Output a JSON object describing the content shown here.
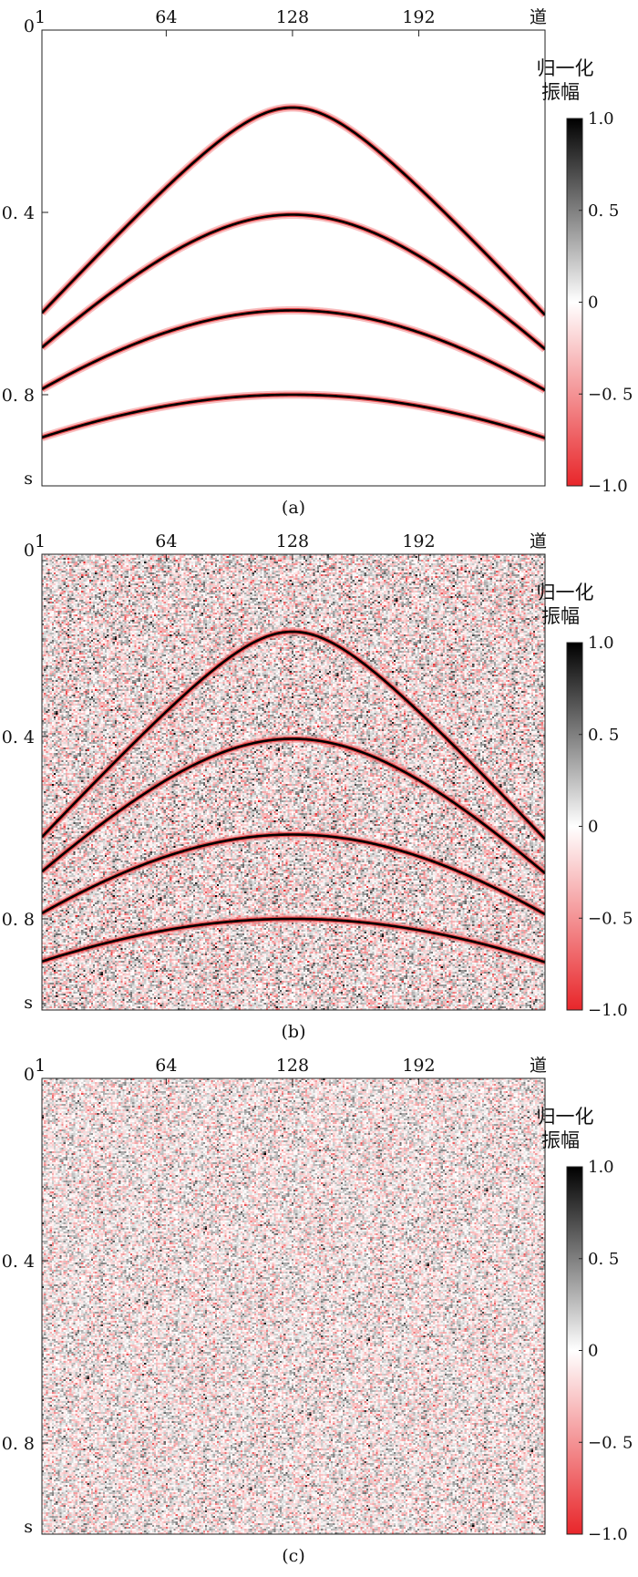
{
  "chart_data": [
    {
      "type": "heatmap",
      "caption": "(a)",
      "x_tick_labels": [
        "1",
        "64",
        "128",
        "192",
        "道"
      ],
      "x_ticks": [
        1,
        64,
        128,
        192,
        256
      ],
      "xlim": [
        1,
        256
      ],
      "y_tick_labels": [
        "0",
        "0. 4",
        "0. 8",
        "s"
      ],
      "y_ticks": [
        0,
        0.4,
        0.8
      ],
      "ylim": [
        0,
        1.0
      ],
      "colorbar": {
        "title_line1": "归一化",
        "title_line2": "振幅",
        "tick_labels": [
          "1.0",
          "0. 5",
          "0",
          "−0. 5",
          "−1.0"
        ],
        "range": [
          -1.0,
          1.0
        ],
        "colors": {
          "max": "#000000",
          "mid": "#ffffff",
          "min": "#e8262a"
        }
      },
      "events": [
        {
          "apex_trace": 128,
          "apex_time": 0.17,
          "edge_time": 0.625
        },
        {
          "apex_trace": 128,
          "apex_time": 0.405,
          "edge_time": 0.7
        },
        {
          "apex_trace": 128,
          "apex_time": 0.615,
          "edge_time": 0.79
        },
        {
          "apex_trace": 128,
          "apex_time": 0.8,
          "edge_time": 0.895
        }
      ],
      "noise_level": 0.0
    },
    {
      "type": "heatmap",
      "caption": "(b)",
      "x_tick_labels": [
        "1",
        "64",
        "128",
        "192",
        "道"
      ],
      "x_ticks": [
        1,
        64,
        128,
        192,
        256
      ],
      "xlim": [
        1,
        256
      ],
      "y_tick_labels": [
        "0",
        "0. 4",
        "0. 8",
        "s"
      ],
      "y_ticks": [
        0,
        0.4,
        0.8
      ],
      "ylim": [
        0,
        1.0
      ],
      "colorbar": {
        "title_line1": "归一化",
        "title_line2": "振幅",
        "tick_labels": [
          "1.0",
          "0. 5",
          "0",
          "−0. 5",
          "−1.0"
        ],
        "range": [
          -1.0,
          1.0
        ],
        "colors": {
          "max": "#000000",
          "mid": "#ffffff",
          "min": "#e8262a"
        }
      },
      "events": [
        {
          "apex_trace": 128,
          "apex_time": 0.17,
          "edge_time": 0.625
        },
        {
          "apex_trace": 128,
          "apex_time": 0.405,
          "edge_time": 0.7
        },
        {
          "apex_trace": 128,
          "apex_time": 0.615,
          "edge_time": 0.79
        },
        {
          "apex_trace": 128,
          "apex_time": 0.8,
          "edge_time": 0.895
        }
      ],
      "noise_level": 0.55
    },
    {
      "type": "heatmap",
      "caption": "(c)",
      "x_tick_labels": [
        "1",
        "64",
        "128",
        "192",
        "道"
      ],
      "x_ticks": [
        1,
        64,
        128,
        192,
        256
      ],
      "xlim": [
        1,
        256
      ],
      "y_tick_labels": [
        "0",
        "0. 4",
        "0. 8",
        "s"
      ],
      "y_ticks": [
        0,
        0.4,
        0.8
      ],
      "ylim": [
        0,
        1.0
      ],
      "colorbar": {
        "title_line1": "归一化",
        "title_line2": "振幅",
        "tick_labels": [
          "1.0",
          "0. 5",
          "0",
          "−0. 5",
          "−1.0"
        ],
        "range": [
          -1.0,
          1.0
        ],
        "colors": {
          "max": "#000000",
          "mid": "#ffffff",
          "min": "#e8262a"
        }
      },
      "events": [],
      "noise_level": 0.45
    }
  ]
}
